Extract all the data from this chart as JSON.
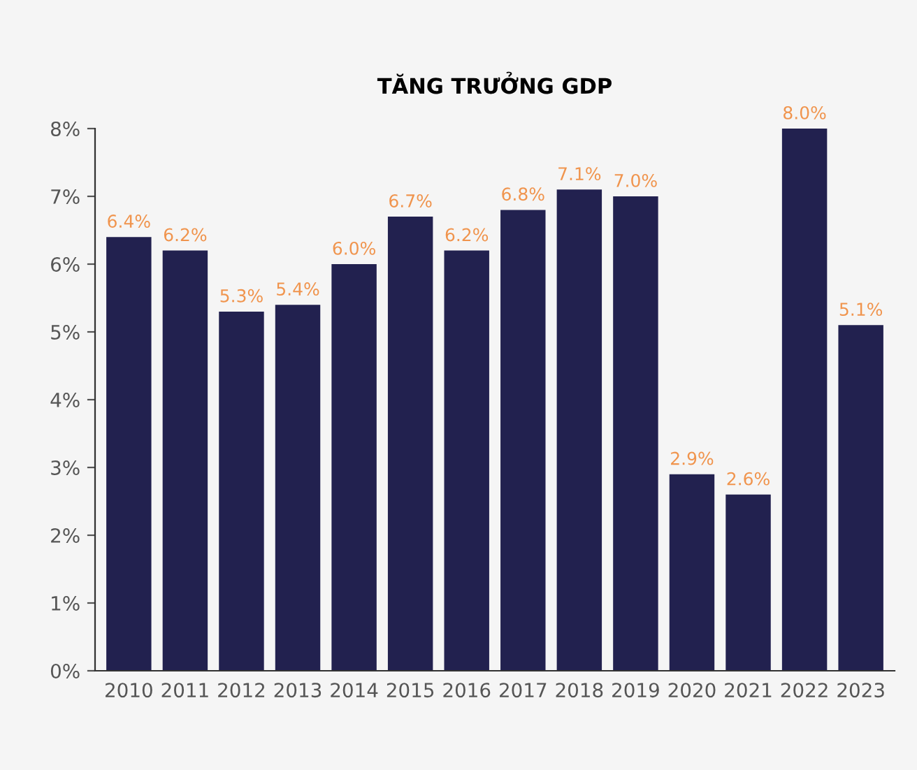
{
  "chart_data": {
    "type": "bar",
    "title": "TĂNG TRƯỞNG GDP",
    "categories": [
      "2010",
      "2011",
      "2012",
      "2013",
      "2014",
      "2015",
      "2016",
      "2017",
      "2018",
      "2019",
      "2020",
      "2021",
      "2022",
      "2023"
    ],
    "values": [
      6.4,
      6.2,
      5.3,
      5.4,
      6.0,
      6.7,
      6.2,
      6.8,
      7.1,
      7.0,
      2.9,
      2.6,
      8.0,
      5.1
    ],
    "value_labels": [
      "6.4%",
      "6.2%",
      "5.3%",
      "5.4%",
      "6.0%",
      "6.7%",
      "6.2%",
      "6.8%",
      "7.1%",
      "7.0%",
      "2.9%",
      "2.6%",
      "8.0%",
      "5.1%"
    ],
    "color": "#22214f",
    "ylim": [
      0,
      8
    ],
    "yticks": [
      {
        "value": 0,
        "label": "0%"
      },
      {
        "value": 1,
        "label": "1%"
      },
      {
        "value": 2,
        "label": "2%"
      },
      {
        "value": 3,
        "label": "3%"
      },
      {
        "value": 4,
        "label": "4%"
      },
      {
        "value": 5,
        "label": "5%"
      },
      {
        "value": 6,
        "label": "6%"
      },
      {
        "value": 7,
        "label": "7%"
      },
      {
        "value": 8,
        "label": "8%"
      }
    ],
    "grid": false,
    "legend": false
  }
}
